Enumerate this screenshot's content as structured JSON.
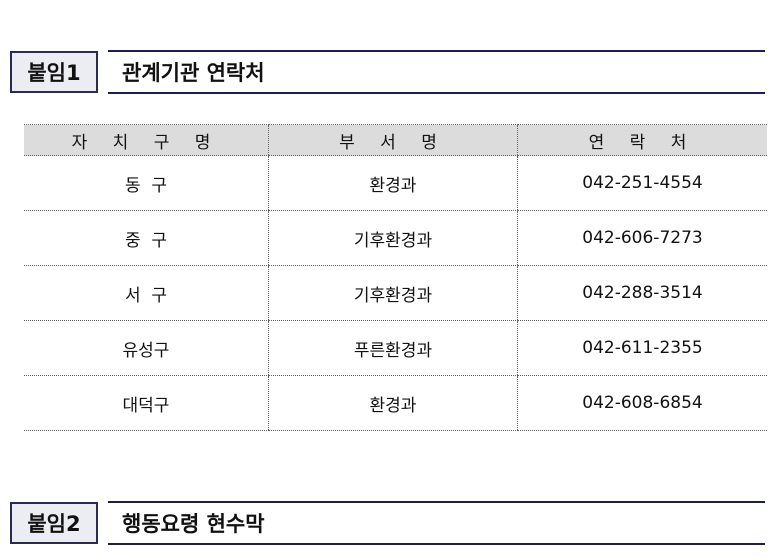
{
  "section1": {
    "tag": "붙임1",
    "title": "관계기관 연락처"
  },
  "table": {
    "headers": [
      "자 치 구 명",
      "부 서 명",
      "연 락 처"
    ],
    "rows": [
      [
        "동  구",
        "환경과",
        "042-251-4554"
      ],
      [
        "중  구",
        "기후환경과",
        "042-606-7273"
      ],
      [
        "서  구",
        "기후환경과",
        "042-288-3514"
      ],
      [
        "유성구",
        "푸른환경과",
        "042-611-2355"
      ],
      [
        "대덕구",
        "환경과",
        "042-608-6854"
      ]
    ]
  },
  "section2": {
    "tag": "붙임2",
    "title": "행동요령 현수막"
  }
}
